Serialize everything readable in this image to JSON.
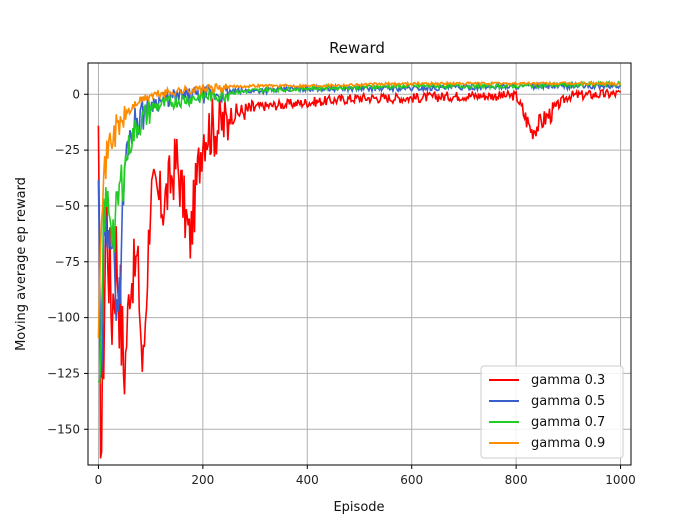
{
  "chart_data": {
    "type": "line",
    "title": "Reward",
    "xlabel": "Episode",
    "ylabel": "Moving average ep reward",
    "xlim": [
      -20,
      1020
    ],
    "ylim": [
      -166,
      14
    ],
    "xticks": [
      0,
      200,
      400,
      600,
      800,
      1000
    ],
    "yticks": [
      0,
      -25,
      -50,
      -75,
      -100,
      -125,
      -150
    ],
    "x_tick_labels": [
      "0",
      "200",
      "400",
      "600",
      "800",
      "1000"
    ],
    "y_tick_labels": [
      "0",
      "−25",
      "−50",
      "−75",
      "−100",
      "−125",
      "−150"
    ],
    "grid": true,
    "legend_position": "lower-right",
    "x_range": [
      0,
      1000
    ],
    "series": [
      {
        "name": "gamma 0.3",
        "color": "#ff0000",
        "approx_points": [
          [
            0,
            -27
          ],
          [
            5,
            -158
          ],
          [
            10,
            -100
          ],
          [
            15,
            -40
          ],
          [
            25,
            -90
          ],
          [
            35,
            -60
          ],
          [
            50,
            -121
          ],
          [
            60,
            -80
          ],
          [
            75,
            -70
          ],
          [
            85,
            -122
          ],
          [
            100,
            -40
          ],
          [
            125,
            -45
          ],
          [
            150,
            -25
          ],
          [
            175,
            -62
          ],
          [
            200,
            -12
          ],
          [
            250,
            -8
          ],
          [
            300,
            -5
          ],
          [
            350,
            -4
          ],
          [
            400,
            -3
          ],
          [
            500,
            -1
          ],
          [
            600,
            -1
          ],
          [
            700,
            0
          ],
          [
            800,
            0
          ],
          [
            830,
            -15
          ],
          [
            900,
            0
          ],
          [
            1000,
            1
          ]
        ]
      },
      {
        "name": "gamma 0.5",
        "color": "#3a5fcd",
        "approx_points": [
          [
            0,
            -30
          ],
          [
            5,
            -150
          ],
          [
            10,
            -70
          ],
          [
            20,
            -45
          ],
          [
            30,
            -78
          ],
          [
            40,
            -88
          ],
          [
            50,
            -30
          ],
          [
            60,
            -15
          ],
          [
            75,
            -8
          ],
          [
            100,
            -3
          ],
          [
            150,
            0
          ],
          [
            200,
            1
          ],
          [
            300,
            2
          ],
          [
            400,
            3
          ],
          [
            600,
            3
          ],
          [
            800,
            4
          ],
          [
            1000,
            4
          ]
        ]
      },
      {
        "name": "gamma 0.7",
        "color": "#22cc22",
        "approx_points": [
          [
            0,
            -135
          ],
          [
            5,
            -120
          ],
          [
            10,
            -50
          ],
          [
            20,
            -45
          ],
          [
            30,
            -60
          ],
          [
            40,
            -40
          ],
          [
            50,
            -30
          ],
          [
            60,
            -20
          ],
          [
            75,
            -12
          ],
          [
            100,
            -5
          ],
          [
            150,
            -2
          ],
          [
            200,
            0
          ],
          [
            300,
            2
          ],
          [
            400,
            3
          ],
          [
            600,
            4
          ],
          [
            800,
            4
          ],
          [
            1000,
            5
          ]
        ]
      },
      {
        "name": "gamma 0.9",
        "color": "#ff8c00",
        "approx_points": [
          [
            0,
            -100
          ],
          [
            5,
            -50
          ],
          [
            10,
            -35
          ],
          [
            20,
            -20
          ],
          [
            30,
            -15
          ],
          [
            40,
            -12
          ],
          [
            50,
            -8
          ],
          [
            75,
            -3
          ],
          [
            100,
            0
          ],
          [
            150,
            2
          ],
          [
            200,
            3
          ],
          [
            300,
            4
          ],
          [
            400,
            4
          ],
          [
            600,
            5
          ],
          [
            800,
            5
          ],
          [
            1000,
            5
          ]
        ]
      }
    ]
  }
}
